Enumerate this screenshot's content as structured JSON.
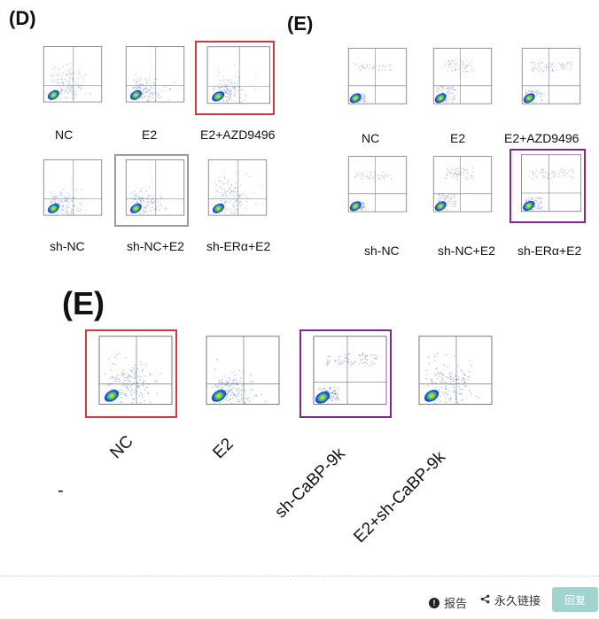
{
  "panels": {
    "d_letter": "(D)",
    "e_top_letter": "(E)",
    "e_bottom_letter": "(E)"
  },
  "panel_d": {
    "row1": [
      "NC",
      "E2",
      "E2+AZD9496"
    ],
    "row2": [
      "sh-NC",
      "sh-NC+E2",
      "sh-ERα+E2"
    ]
  },
  "panel_e_top": {
    "row1": [
      "NC",
      "E2",
      "E2+AZD9496"
    ],
    "row2": [
      "sh-NC",
      "sh-NC+E2",
      "sh-ERα+E2"
    ]
  },
  "panel_e_bottom": {
    "labels": [
      "NC",
      "E2",
      "sh-CaBP-9k",
      "E2+sh-CaBP-9k"
    ]
  },
  "stray_mark": "-",
  "footer": {
    "report": "报告",
    "permalink": "永久链接",
    "reply": "回复"
  },
  "colors": {
    "red_frame": "#d8383a",
    "purple_frame": "#7a2a8c",
    "reply_bg": "#9fd5ce"
  }
}
